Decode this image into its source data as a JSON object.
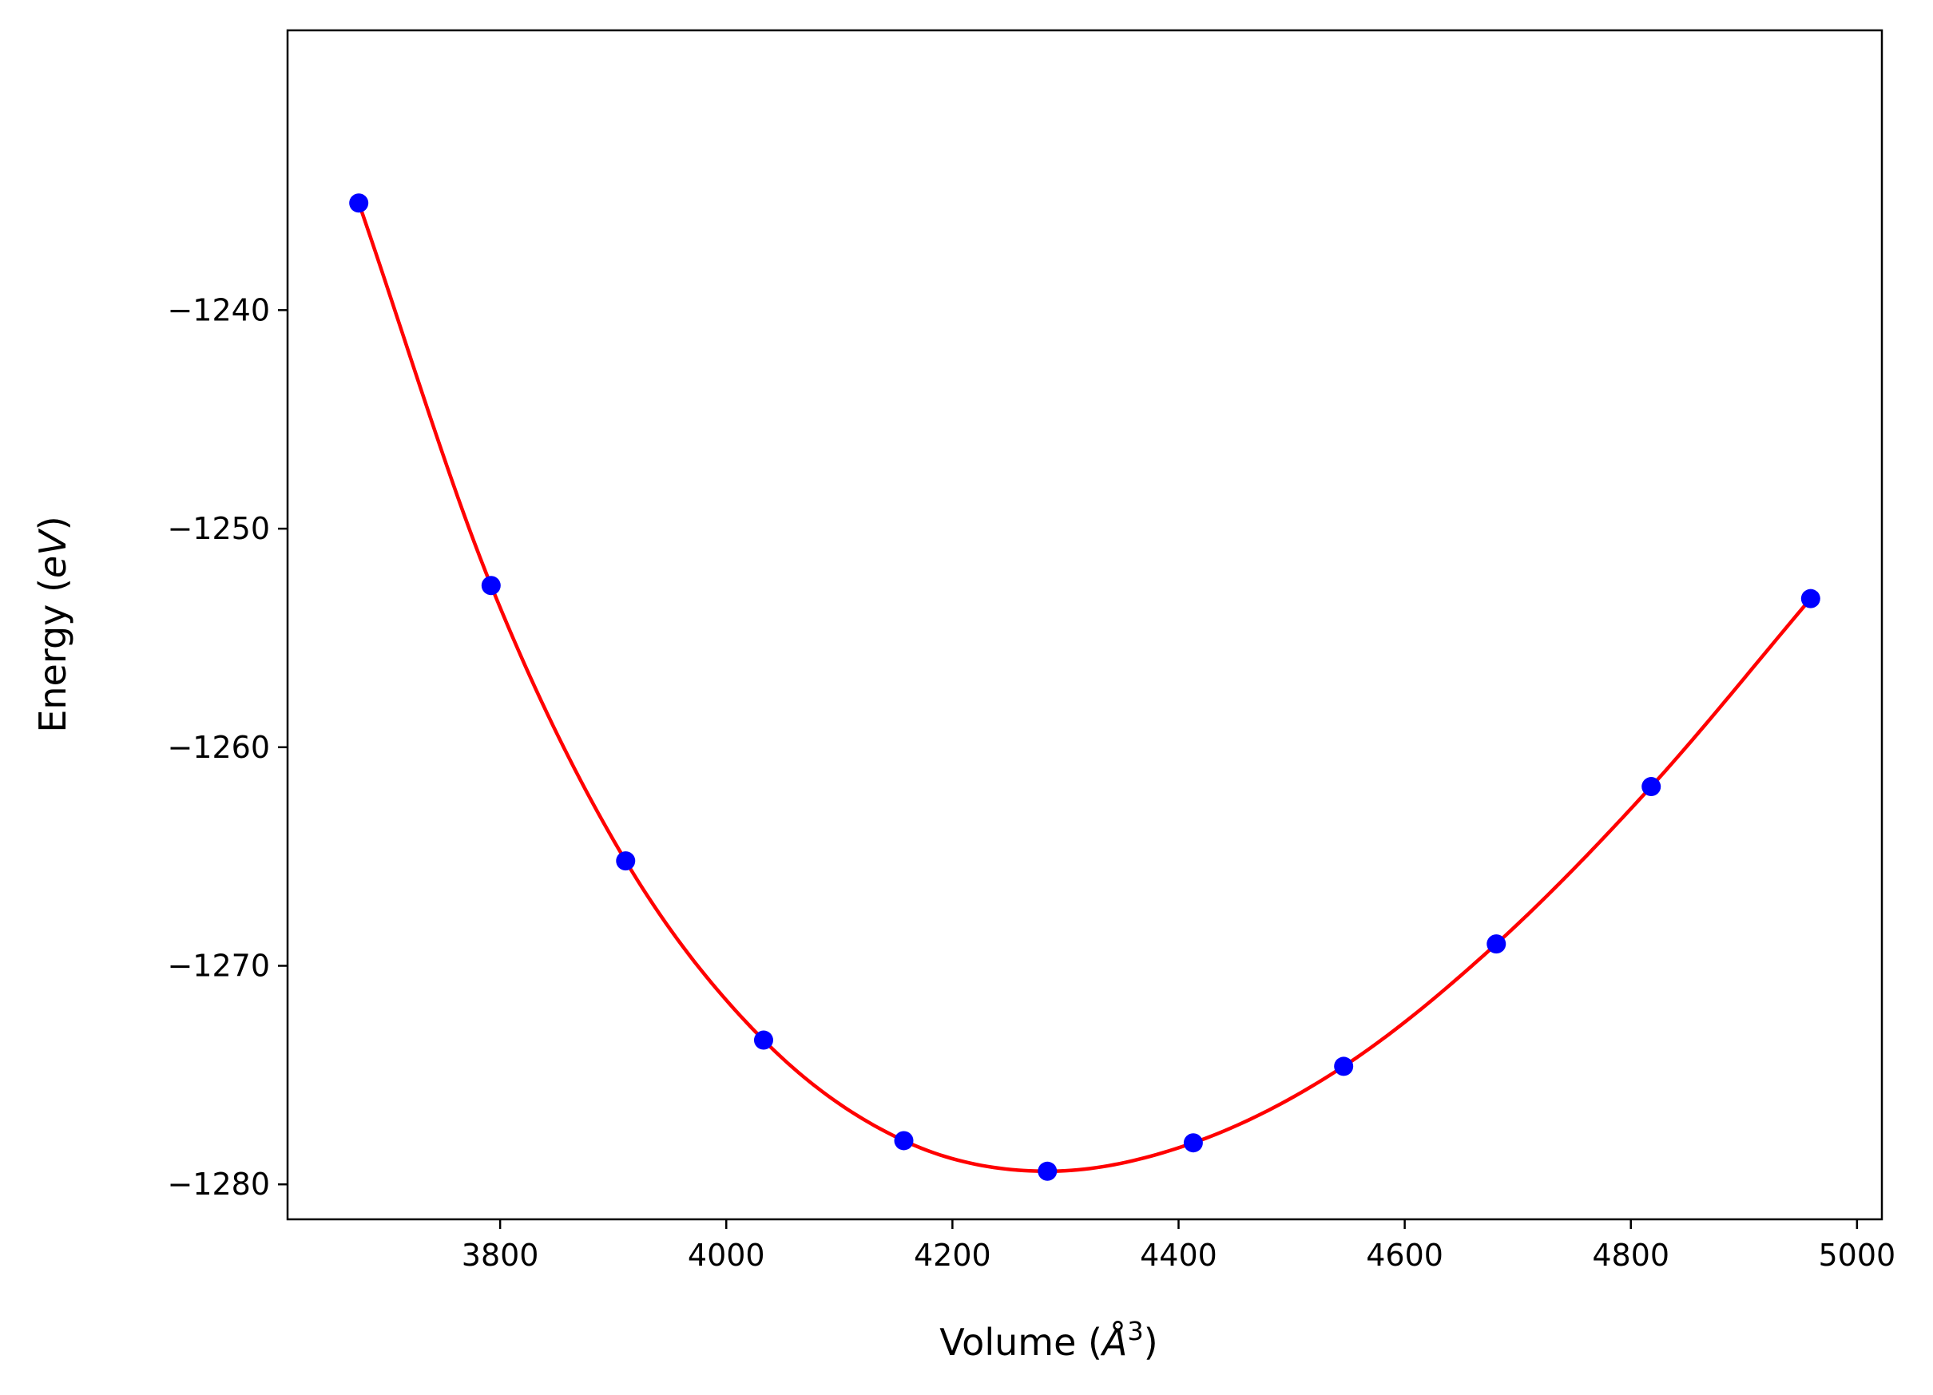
{
  "chart_data": {
    "type": "scatter",
    "title": "",
    "xlabel_parts": {
      "prefix": "Volume (",
      "symbol": "Å",
      "superscript": "3",
      "suffix": ")"
    },
    "ylabel_parts": {
      "prefix": "Energy (",
      "italic": "eV",
      "suffix": ")"
    },
    "xlim": [
      3612,
      5022
    ],
    "ylim": [
      -1281.6,
      -1227.2
    ],
    "xticks": [
      3800,
      4000,
      4200,
      4400,
      4600,
      4800,
      5000
    ],
    "yticks": [
      -1280,
      -1270,
      -1260,
      -1250,
      -1240
    ],
    "grid": false,
    "series": [
      {
        "kind": "points",
        "color": "#0000ff",
        "x": [
          3675,
          3792,
          3911,
          4033,
          4157,
          4284,
          4413,
          4546,
          4681,
          4818,
          4959
        ],
        "y": [
          -1235.1,
          -1252.6,
          -1265.2,
          -1273.4,
          -1278.0,
          -1279.4,
          -1278.1,
          -1274.6,
          -1269.0,
          -1261.8,
          -1253.2
        ]
      },
      {
        "kind": "fit-curve",
        "color": "#ff0000"
      }
    ]
  }
}
